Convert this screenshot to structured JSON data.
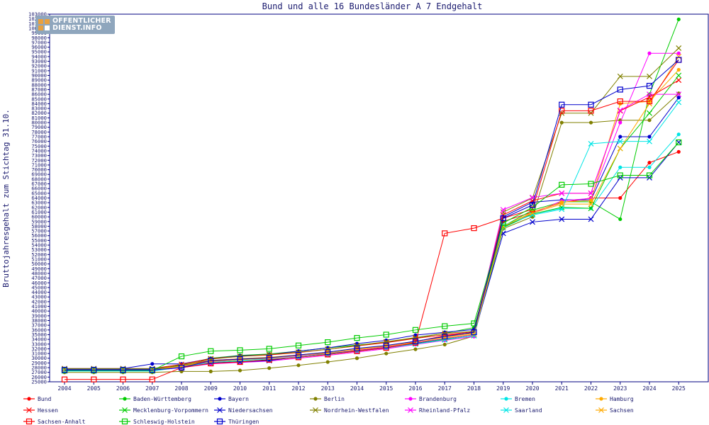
{
  "logo": {
    "line1": "OFFENTLICHER",
    "line2": "DIENST.INFO"
  },
  "chart_data": {
    "type": "line",
    "title": "Bund und alle 16 Bundesländer A 7 Endgehalt",
    "xlabel": "",
    "ylabel": "Bruttojahresgehalt zum Stichtag 31.10.",
    "ylim": [
      25000,
      103000
    ],
    "ytick_step": 1000,
    "grid": false,
    "legend_position": "bottom",
    "categories": [
      "2004",
      "2005",
      "2006",
      "2007",
      "2008",
      "2009",
      "2010",
      "2011",
      "2012",
      "2013",
      "2014",
      "2015",
      "2016",
      "2017",
      "2018",
      "2019",
      "2020",
      "2021",
      "2022",
      "2023",
      "2024",
      "2025"
    ],
    "series": [
      {
        "name": "Bund",
        "color": "#ff0000",
        "marker": "dot",
        "values": [
          27600,
          27600,
          27600,
          27600,
          28500,
          29500,
          29900,
          30100,
          30600,
          31000,
          31600,
          32300,
          33500,
          34800,
          35400,
          59000,
          61000,
          63000,
          64000,
          64000,
          71500,
          73800
        ]
      },
      {
        "name": "Baden-Württemberg",
        "color": "#00cc00",
        "marker": "dot",
        "values": [
          27600,
          27600,
          27600,
          27600,
          28600,
          30000,
          30600,
          30900,
          31500,
          32200,
          32800,
          33400,
          34300,
          35300,
          36500,
          58000,
          61400,
          63200,
          63200,
          59500,
          86000,
          101900
        ]
      },
      {
        "name": "Bayern",
        "color": "#0000cc",
        "marker": "dot",
        "values": [
          27800,
          27800,
          27800,
          28800,
          28800,
          29900,
          30500,
          30800,
          31500,
          32200,
          33100,
          33800,
          34900,
          35500,
          36100,
          60000,
          63100,
          63600,
          63600,
          77000,
          77000,
          85300
        ]
      },
      {
        "name": "Berlin",
        "color": "#808000",
        "marker": "dot",
        "values": [
          27000,
          27000,
          27000,
          27000,
          27200,
          27200,
          27400,
          27900,
          28500,
          29200,
          30000,
          31000,
          31900,
          32900,
          34700,
          57500,
          60000,
          80000,
          80000,
          80500,
          80500,
          86200
        ]
      },
      {
        "name": "Brandenburg",
        "color": "#ff00ff",
        "marker": "dot",
        "values": [
          27400,
          27400,
          27400,
          27400,
          28000,
          28800,
          29100,
          29400,
          30000,
          30600,
          31300,
          32000,
          32900,
          33800,
          34600,
          57900,
          60700,
          63400,
          63900,
          80000,
          94700,
          94700
        ]
      },
      {
        "name": "Bremen",
        "color": "#00e5e5",
        "marker": "dot",
        "values": [
          27300,
          27300,
          27300,
          27300,
          28200,
          29300,
          29700,
          30100,
          30600,
          31100,
          31800,
          32400,
          33300,
          34100,
          35100,
          57700,
          60600,
          61800,
          61800,
          70500,
          70500,
          77500
        ]
      },
      {
        "name": "Hamburg",
        "color": "#ffaa00",
        "marker": "dot",
        "values": [
          27500,
          27500,
          27500,
          27500,
          28400,
          29400,
          29900,
          30200,
          30700,
          31300,
          32000,
          32600,
          33600,
          34500,
          35300,
          57900,
          61000,
          63100,
          63500,
          84000,
          84500,
          91200
        ]
      },
      {
        "name": "Hessen",
        "color": "#ff0000",
        "marker": "x",
        "values": [
          27800,
          27800,
          27800,
          27800,
          28700,
          29900,
          30400,
          30700,
          31200,
          31900,
          32600,
          33300,
          34200,
          35000,
          35600,
          60400,
          63400,
          65000,
          65000,
          82500,
          85400,
          89000
        ]
      },
      {
        "name": "Mecklenburg-Vorpommern",
        "color": "#00cc00",
        "marker": "x",
        "values": [
          27500,
          27500,
          27500,
          27500,
          28100,
          29000,
          29300,
          29600,
          30200,
          30800,
          31500,
          32200,
          33100,
          34000,
          34800,
          57800,
          60600,
          62000,
          61800,
          74500,
          82000,
          90000
        ]
      },
      {
        "name": "Niedersachsen",
        "color": "#0000cc",
        "marker": "x",
        "values": [
          27700,
          27700,
          27700,
          27700,
          28000,
          29000,
          29200,
          29500,
          30300,
          30900,
          31700,
          32300,
          33200,
          34200,
          35000,
          56500,
          58900,
          59500,
          59500,
          68300,
          68300,
          75800
        ]
      },
      {
        "name": "Nordrhein-Westfalen",
        "color": "#808000",
        "marker": "x",
        "values": [
          27800,
          27800,
          27800,
          27800,
          28400,
          29800,
          30400,
          30800,
          31300,
          31900,
          32700,
          33500,
          34400,
          35300,
          35700,
          61000,
          64000,
          82000,
          82000,
          89800,
          89800,
          95800
        ]
      },
      {
        "name": "Rheinland-Pfalz",
        "color": "#ff00ff",
        "marker": "x",
        "values": [
          27500,
          27500,
          27500,
          27500,
          28200,
          29200,
          29700,
          30000,
          30500,
          31100,
          31700,
          32400,
          33300,
          34200,
          35000,
          61500,
          64100,
          65000,
          65000,
          82600,
          86000,
          86000
        ]
      },
      {
        "name": "Saarland",
        "color": "#00e5e5",
        "marker": "x",
        "values": [
          27300,
          27300,
          27300,
          27300,
          28100,
          29100,
          29500,
          29800,
          30300,
          30900,
          31500,
          32200,
          33000,
          33900,
          34800,
          58200,
          60400,
          61600,
          75500,
          76000,
          76000,
          84300
        ]
      },
      {
        "name": "Sachsen",
        "color": "#ffaa00",
        "marker": "x",
        "values": [
          27500,
          27500,
          27500,
          27500,
          28300,
          29300,
          29700,
          30000,
          30600,
          31100,
          31800,
          32500,
          33400,
          34300,
          35100,
          58000,
          60800,
          62700,
          62700,
          74500,
          84000,
          94000
        ]
      },
      {
        "name": "Sachsen-Anhalt",
        "color": "#ff0000",
        "marker": "square",
        "values": [
          25500,
          25500,
          25500,
          25500,
          28000,
          28900,
          29200,
          29700,
          30200,
          30800,
          31500,
          32200,
          33300,
          56500,
          57600,
          59700,
          61600,
          82500,
          82500,
          84500,
          84500,
          93300
        ]
      },
      {
        "name": "Schleswig-Holstein",
        "color": "#00cc00",
        "marker": "square",
        "values": [
          27400,
          27400,
          27400,
          27400,
          30400,
          31500,
          31700,
          32000,
          32700,
          33400,
          34300,
          35000,
          36000,
          36800,
          37400,
          58700,
          62000,
          66800,
          67000,
          68800,
          68800,
          75800
        ]
      },
      {
        "name": "Thüringen",
        "color": "#0000cc",
        "marker": "square",
        "values": [
          27500,
          27500,
          27500,
          27500,
          28000,
          29500,
          29800,
          30100,
          30700,
          31300,
          32100,
          32700,
          33600,
          34600,
          35500,
          59700,
          62500,
          83800,
          83800,
          87000,
          87800,
          93300
        ]
      }
    ]
  }
}
